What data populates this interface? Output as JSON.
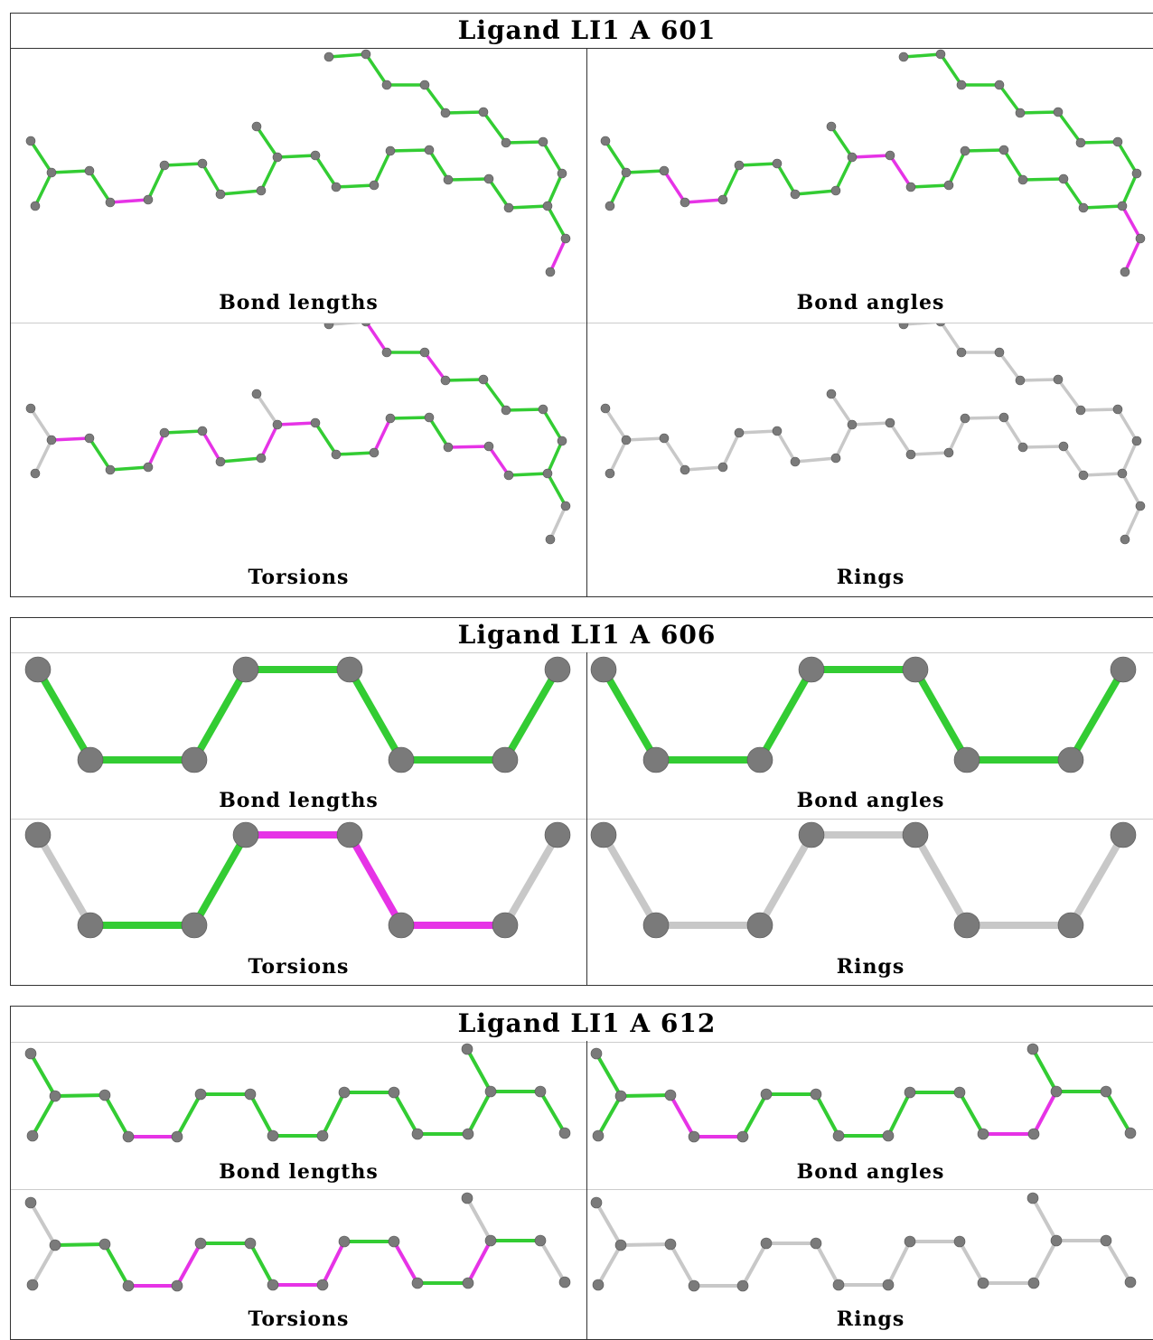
{
  "panel_labels": {
    "bond_lengths": "Bond lengths",
    "bond_angles": "Bond angles",
    "torsions": "Torsions",
    "rings": "Rings"
  },
  "colors": {
    "ok": "#33cc33",
    "outlier": "#e633e6",
    "none": "#c8c8c8",
    "atom": "#7a7a7a"
  },
  "ligands": [
    {
      "title": "Ligand LI1 A 601"
    },
    {
      "title": "Ligand LI1 A 606"
    },
    {
      "title": "Ligand LI1 A 612"
    }
  ]
}
